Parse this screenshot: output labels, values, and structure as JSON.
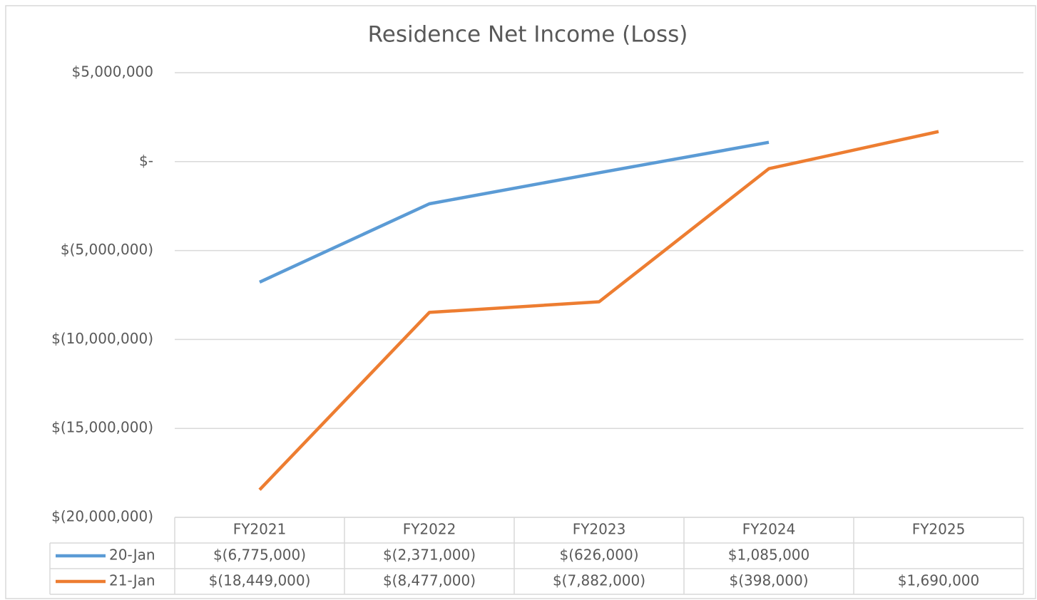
{
  "chart_data": {
    "type": "line",
    "title": "Residence Net Income (Loss)",
    "categories": [
      "FY2021",
      "FY2022",
      "FY2023",
      "FY2024",
      "FY2025"
    ],
    "series": [
      {
        "name": "20-Jan",
        "color": "#5b9bd5",
        "values": [
          -6775000,
          -2371000,
          -626000,
          1085000,
          null
        ],
        "value_labels": [
          "$(6,775,000)",
          "$(2,371,000)",
          "$(626,000)",
          "$1,085,000",
          null
        ]
      },
      {
        "name": "21-Jan",
        "color": "#ed7d31",
        "values": [
          -18449000,
          -8477000,
          -7882000,
          -398000,
          1690000
        ],
        "value_labels": [
          "$(18,449,000)",
          "$(8,477,000)",
          "$(7,882,000)",
          "$(398,000)",
          "$1,690,000"
        ]
      }
    ],
    "ylim": [
      -20000000,
      5000000
    ],
    "yticks": [
      {
        "value": 5000000,
        "label": "$5,000,000"
      },
      {
        "value": 0,
        "label": "$-"
      },
      {
        "value": -5000000,
        "label": "$(5,000,000)"
      },
      {
        "value": -10000000,
        "label": "$(10,000,000)"
      },
      {
        "value": -15000000,
        "label": "$(15,000,000)"
      },
      {
        "value": -20000000,
        "label": "$(20,000,000)"
      }
    ],
    "grid": true
  }
}
